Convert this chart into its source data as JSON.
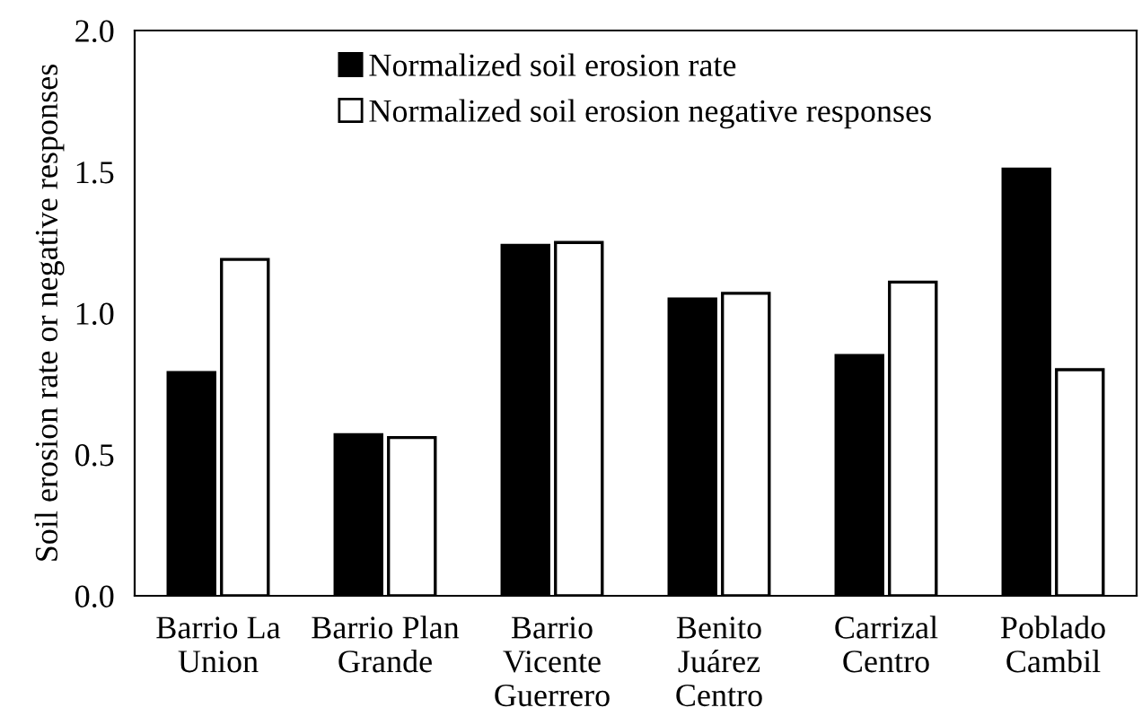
{
  "chart_data": {
    "type": "bar",
    "ylabel": "Soil erosion rate or negative responses",
    "categories": [
      "Barrio La\nUnion",
      "Barrio Plan\nGrande",
      "Barrio\nVicente\nGuerrero",
      "Benito\nJuárez\nCentro",
      "Carrizal\nCentro",
      "Poblado\nCambil"
    ],
    "series": [
      {
        "name": "Normalized soil erosion rate",
        "color": "#000000",
        "values": [
          0.79,
          0.57,
          1.24,
          1.05,
          0.85,
          1.51
        ]
      },
      {
        "name": "Normalized soil erosion negative responses",
        "color": "#ffffff",
        "values": [
          1.19,
          0.56,
          1.25,
          1.07,
          1.11,
          0.8
        ]
      }
    ],
    "ylim": [
      0,
      2
    ],
    "yticks": [
      {
        "value": 0,
        "label": "0.0"
      },
      {
        "value": 0.5,
        "label": "0.5"
      },
      {
        "value": 1,
        "label": "1.0"
      },
      {
        "value": 1.5,
        "label": "1.5"
      },
      {
        "value": 2,
        "label": "2.0"
      }
    ],
    "grid": false,
    "legend": "top"
  }
}
